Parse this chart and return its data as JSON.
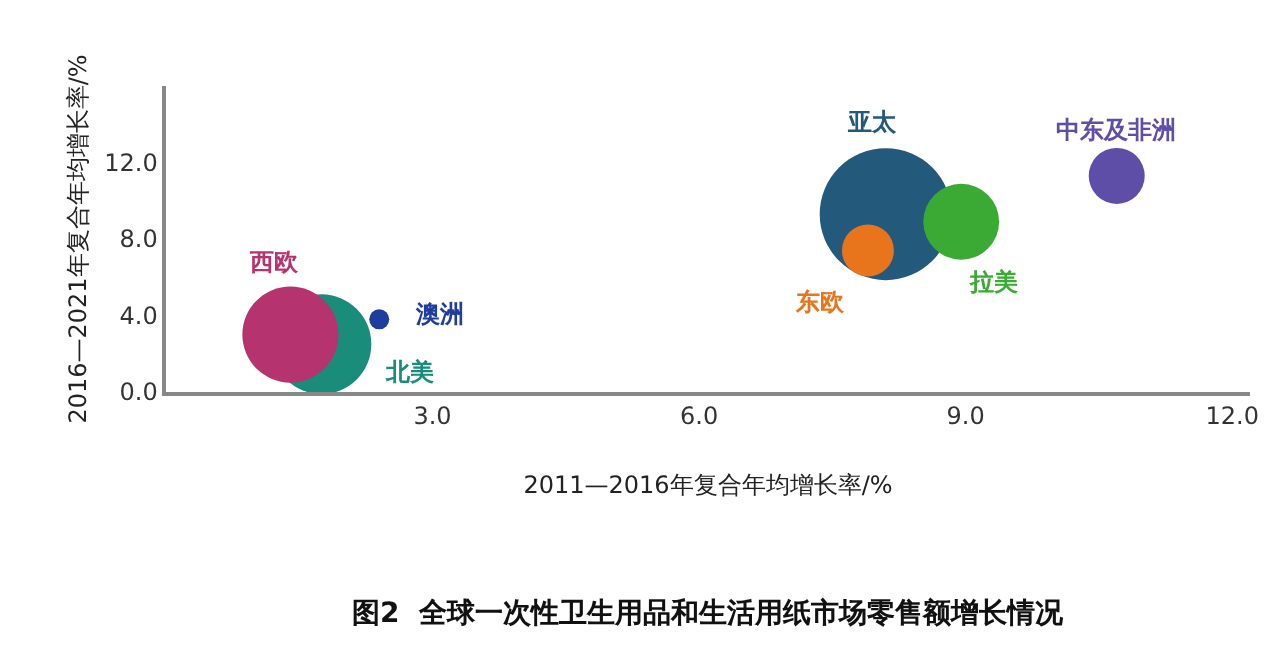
{
  "chart_data": {
    "type": "bubble",
    "title": "图2  全球一次性卫生用品和生活用纸市场零售额增长情况",
    "xlabel": "2011—2016年复合年均增长率/%",
    "ylabel": "2016—2021年复合年均增长率/%",
    "xlim": [
      0,
      12.2
    ],
    "ylim": [
      0,
      16
    ],
    "xticks": [
      {
        "value": 3,
        "label": "3.0"
      },
      {
        "value": 6,
        "label": "6.0"
      },
      {
        "value": 9,
        "label": "9.0"
      },
      {
        "value": 12,
        "label": "12.0"
      }
    ],
    "yticks": [
      {
        "value": 0,
        "label": "0.0"
      },
      {
        "value": 4,
        "label": "4.0"
      },
      {
        "value": 8,
        "label": "8.0"
      },
      {
        "value": 12,
        "label": "12.0"
      }
    ],
    "series": [
      {
        "name": "北美",
        "color": "#1a8c7a",
        "x": [
          1.75
        ],
        "values": [
          2.5
        ],
        "sizes": [
          0.57
        ]
      },
      {
        "name": "西欧",
        "color": "#b5336f",
        "x": [
          1.4
        ],
        "values": [
          3.0
        ],
        "sizes": [
          0.53
        ]
      },
      {
        "name": "澳洲",
        "color": "#1f3d9c",
        "x": [
          2.4
        ],
        "values": [
          3.8
        ],
        "sizes": [
          0.023
        ]
      },
      {
        "name": "亚太",
        "color": "#23597a",
        "x": [
          8.1
        ],
        "values": [
          9.3
        ],
        "sizes": [
          1
        ]
      },
      {
        "name": "东欧",
        "color": "#e8741c",
        "x": [
          7.9
        ],
        "values": [
          7.4
        ],
        "sizes": [
          0.155
        ]
      },
      {
        "name": "拉美",
        "color": "#3aaa35",
        "x": [
          8.95
        ],
        "values": [
          8.9
        ],
        "sizes": [
          0.33
        ]
      },
      {
        "name": "中东及非洲",
        "color": "#5e4ea8",
        "x": [
          10.7
        ],
        "values": [
          11.3
        ],
        "sizes": [
          0.18
        ]
      }
    ]
  }
}
